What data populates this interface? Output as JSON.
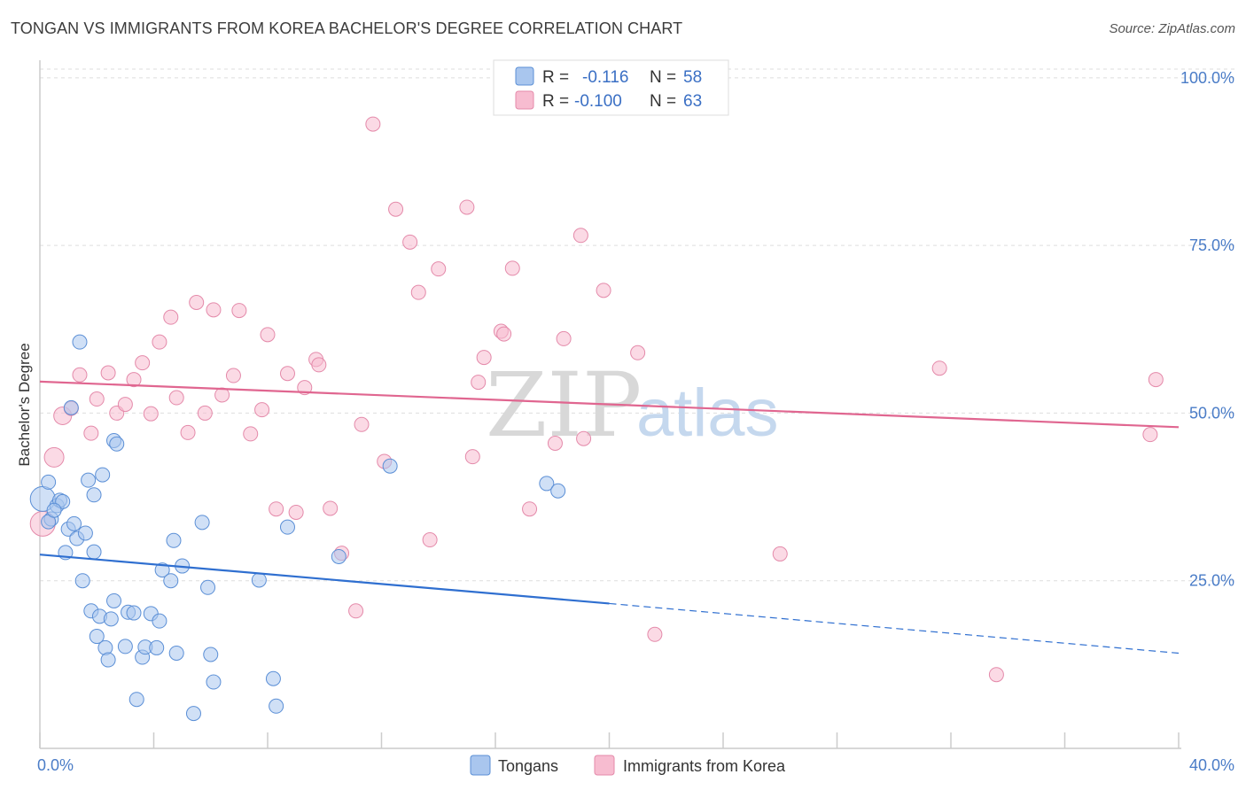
{
  "title": "TONGAN VS IMMIGRANTS FROM KOREA BACHELOR'S DEGREE CORRELATION CHART",
  "source": "Source: ZipAtlas.com",
  "watermark": {
    "zip": "ZIP",
    "atlas": "atlas"
  },
  "colors": {
    "tongans_fill": "#a9c6ee",
    "tongans_stroke": "#5b8fd6",
    "tongans_line": "#2f6fd0",
    "korea_fill": "#f7bcd0",
    "korea_stroke": "#e48aaa",
    "korea_line": "#e06690",
    "grid": "#dddddd",
    "axis_text": "#4a7cc7"
  },
  "legend": {
    "rows": [
      {
        "r_label": "R =",
        "r_value": "-0.116",
        "n_label": "N =",
        "n_value": "58"
      },
      {
        "r_label": "R =",
        "r_value": "-0.100",
        "n_label": "N =",
        "n_value": "63"
      }
    ]
  },
  "bottom_legend": [
    "Tongans",
    "Immigrants from Korea"
  ],
  "chart_data": {
    "type": "scatter",
    "title": "TONGAN VS IMMIGRANTS FROM KOREA BACHELOR'S DEGREE CORRELATION CHART",
    "xlabel": "",
    "ylabel": "Bachelor's Degree",
    "xlim": [
      0,
      40
    ],
    "ylim": [
      0,
      105
    ],
    "x_tick_labels": [
      "0.0%",
      "40.0%"
    ],
    "y_ticks": [
      25,
      50,
      75,
      100
    ],
    "y_tick_labels": [
      "25.0%",
      "50.0%",
      "75.0%",
      "100.0%"
    ],
    "grid": true,
    "legend_position": "top-center",
    "series": [
      {
        "name": "Tongans",
        "R": -0.116,
        "N": 58,
        "trend": {
          "x_solid": [
            0,
            20
          ],
          "y_solid": [
            28.9,
            21.6
          ],
          "x_dashed": [
            20,
            40
          ],
          "y_dashed": [
            21.6,
            14.2
          ]
        },
        "points": [
          [
            0.1,
            37.2,
            14
          ],
          [
            0.3,
            39.7,
            8
          ],
          [
            0.4,
            34.2,
            8
          ],
          [
            0.6,
            36.2,
            8
          ],
          [
            0.7,
            37.0,
            8
          ],
          [
            0.8,
            36.8,
            8
          ],
          [
            0.9,
            29.2,
            8
          ],
          [
            1.0,
            32.7,
            8
          ],
          [
            1.1,
            50.8,
            8
          ],
          [
            1.2,
            33.5,
            8
          ],
          [
            1.3,
            31.3,
            8
          ],
          [
            1.4,
            60.6,
            8
          ],
          [
            1.5,
            25.0,
            8
          ],
          [
            1.6,
            32.1,
            8
          ],
          [
            1.7,
            40.0,
            8
          ],
          [
            1.8,
            20.5,
            8
          ],
          [
            1.9,
            37.8,
            8
          ],
          [
            1.9,
            29.3,
            8
          ],
          [
            2.0,
            16.7,
            8
          ],
          [
            2.1,
            19.7,
            8
          ],
          [
            2.2,
            40.8,
            8
          ],
          [
            2.3,
            15.0,
            8
          ],
          [
            2.4,
            13.2,
            8
          ],
          [
            2.5,
            19.3,
            8
          ],
          [
            2.6,
            22.0,
            8
          ],
          [
            2.6,
            45.9,
            8
          ],
          [
            2.7,
            45.4,
            8
          ],
          [
            3.0,
            15.2,
            8
          ],
          [
            3.1,
            20.3,
            8
          ],
          [
            3.3,
            20.2,
            8
          ],
          [
            3.4,
            7.3,
            8
          ],
          [
            3.6,
            13.6,
            8
          ],
          [
            3.7,
            15.1,
            8
          ],
          [
            3.9,
            20.1,
            8
          ],
          [
            4.1,
            15.0,
            8
          ],
          [
            4.2,
            19.0,
            8
          ],
          [
            4.3,
            26.6,
            8
          ],
          [
            4.6,
            25.0,
            8
          ],
          [
            4.7,
            31.0,
            8
          ],
          [
            4.8,
            14.2,
            8
          ],
          [
            5.0,
            27.2,
            8
          ],
          [
            5.4,
            5.2,
            8
          ],
          [
            5.7,
            33.7,
            8
          ],
          [
            5.9,
            24.0,
            8
          ],
          [
            6.0,
            14.0,
            8
          ],
          [
            6.1,
            9.9,
            8
          ],
          [
            7.7,
            25.1,
            8
          ],
          [
            8.2,
            10.4,
            8
          ],
          [
            8.3,
            6.3,
            8
          ],
          [
            8.7,
            33.0,
            8
          ],
          [
            10.5,
            28.6,
            8
          ],
          [
            12.3,
            42.1,
            8
          ],
          [
            17.8,
            39.5,
            8
          ],
          [
            18.2,
            38.4,
            8
          ],
          [
            0.3,
            33.8,
            8
          ],
          [
            0.5,
            35.5,
            8
          ]
        ]
      },
      {
        "name": "Immigrants from Korea",
        "R": -0.1,
        "N": 63,
        "trend": {
          "x": [
            0,
            40
          ],
          "y": [
            54.7,
            47.9
          ]
        },
        "points": [
          [
            0.1,
            33.5,
            14
          ],
          [
            0.5,
            43.4,
            11
          ],
          [
            0.8,
            49.6,
            10
          ],
          [
            1.1,
            50.7,
            8
          ],
          [
            1.4,
            55.7,
            8
          ],
          [
            1.8,
            47.0,
            8
          ],
          [
            2.0,
            52.1,
            8
          ],
          [
            2.4,
            56.0,
            8
          ],
          [
            2.7,
            50.0,
            8
          ],
          [
            3.0,
            51.3,
            8
          ],
          [
            3.3,
            55.0,
            8
          ],
          [
            3.6,
            57.5,
            8
          ],
          [
            3.9,
            49.9,
            8
          ],
          [
            4.2,
            60.6,
            8
          ],
          [
            4.6,
            64.3,
            8
          ],
          [
            4.8,
            52.3,
            8
          ],
          [
            5.2,
            47.1,
            8
          ],
          [
            5.5,
            66.5,
            8
          ],
          [
            5.8,
            50.0,
            8
          ],
          [
            6.1,
            65.4,
            8
          ],
          [
            6.4,
            52.7,
            8
          ],
          [
            6.8,
            55.6,
            8
          ],
          [
            7.0,
            65.3,
            8
          ],
          [
            7.4,
            46.9,
            8
          ],
          [
            7.8,
            50.5,
            8
          ],
          [
            8.0,
            61.7,
            8
          ],
          [
            8.3,
            35.7,
            8
          ],
          [
            8.7,
            55.9,
            8
          ],
          [
            9.0,
            35.2,
            8
          ],
          [
            9.3,
            53.8,
            8
          ],
          [
            9.7,
            58.0,
            8
          ],
          [
            9.8,
            57.2,
            8
          ],
          [
            10.2,
            35.8,
            8
          ],
          [
            10.6,
            29.1,
            8
          ],
          [
            11.1,
            20.5,
            8
          ],
          [
            11.3,
            48.3,
            8
          ],
          [
            11.7,
            93.1,
            8
          ],
          [
            12.1,
            42.8,
            8
          ],
          [
            12.5,
            80.4,
            8
          ],
          [
            13.0,
            75.5,
            8
          ],
          [
            13.3,
            68.0,
            8
          ],
          [
            13.7,
            31.1,
            8
          ],
          [
            14.0,
            71.5,
            8
          ],
          [
            15.2,
            43.5,
            8
          ],
          [
            15.4,
            54.6,
            8
          ],
          [
            15.6,
            58.3,
            8
          ],
          [
            15.0,
            80.7,
            8
          ],
          [
            16.2,
            62.2,
            8
          ],
          [
            16.3,
            61.8,
            8
          ],
          [
            16.6,
            71.6,
            8
          ],
          [
            17.2,
            35.7,
            8
          ],
          [
            18.1,
            45.5,
            8
          ],
          [
            18.4,
            61.1,
            8
          ],
          [
            19.0,
            76.5,
            8
          ],
          [
            19.1,
            46.2,
            8
          ],
          [
            19.8,
            68.3,
            8
          ],
          [
            21.0,
            59.0,
            8
          ],
          [
            21.6,
            17.0,
            8
          ],
          [
            26.0,
            29.0,
            8
          ],
          [
            31.6,
            56.7,
            8
          ],
          [
            33.6,
            11.0,
            8
          ],
          [
            39.0,
            46.8,
            8
          ],
          [
            39.2,
            55.0,
            8
          ]
        ]
      }
    ]
  }
}
